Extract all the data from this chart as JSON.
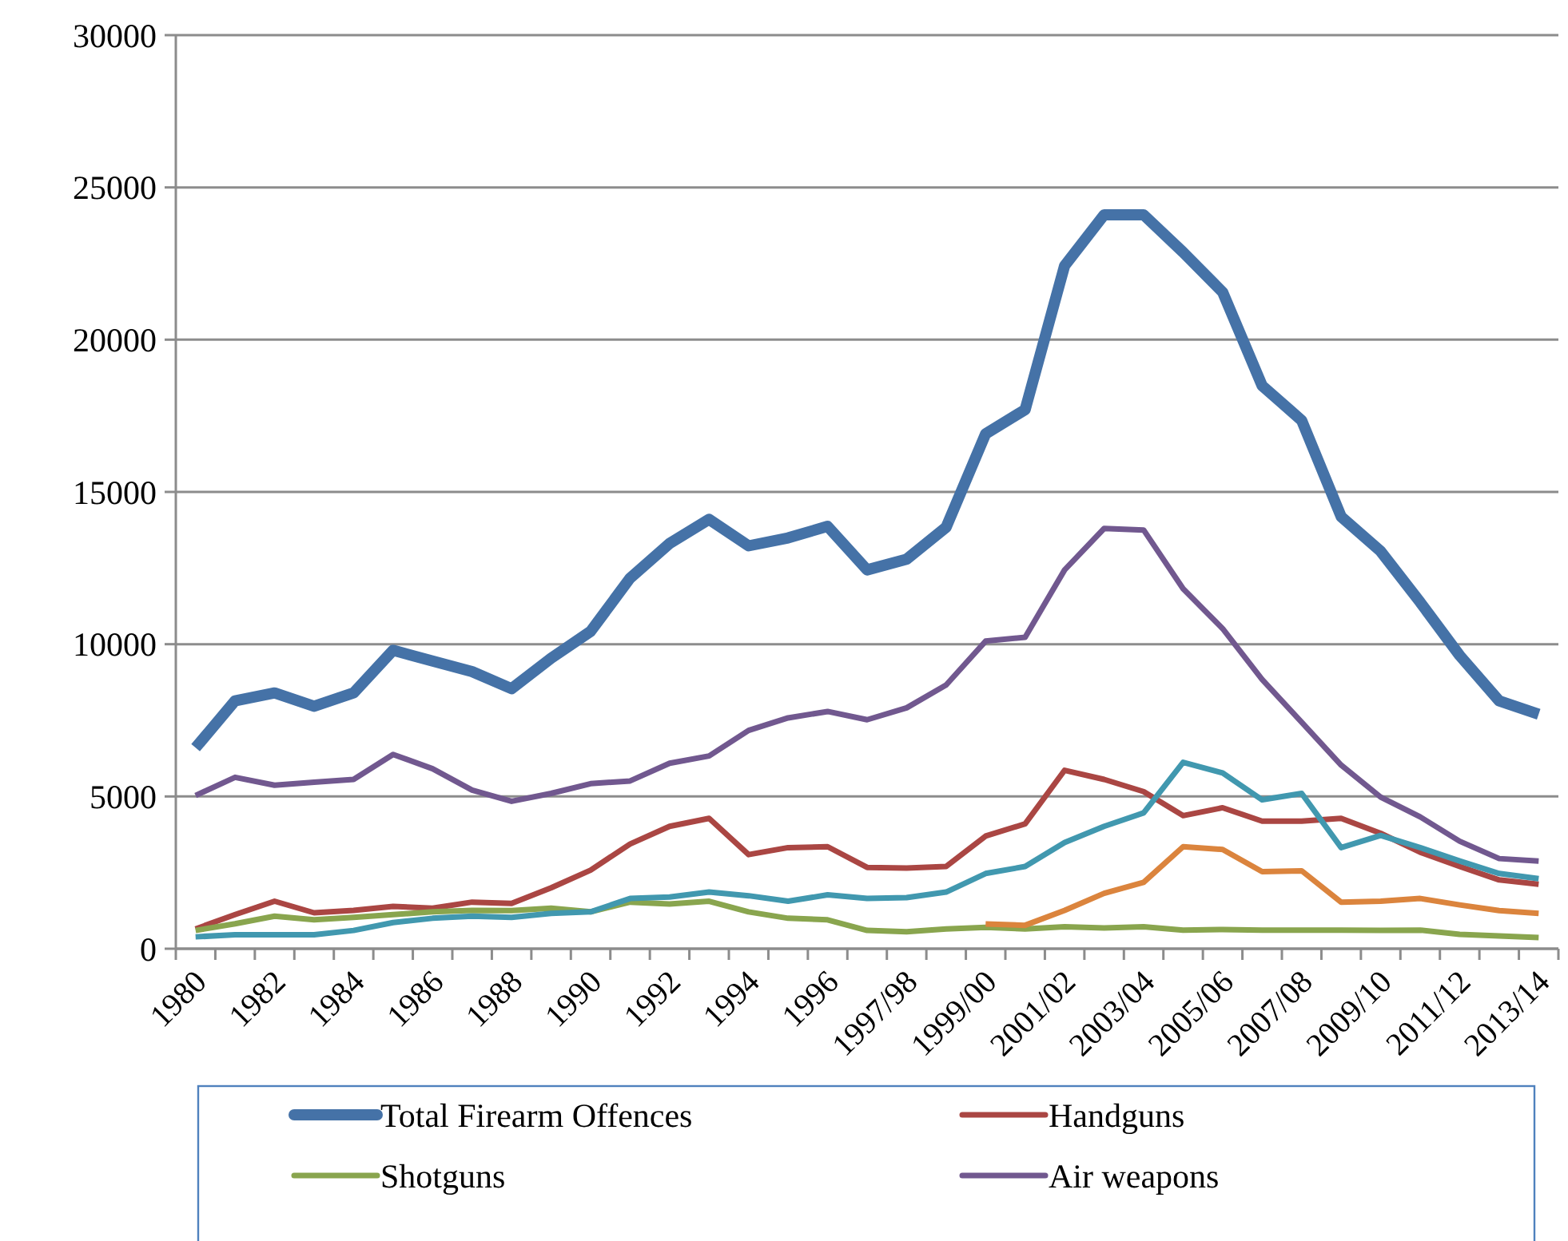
{
  "chart_data": {
    "type": "line",
    "categories": [
      "1980",
      null,
      "1982",
      null,
      "1984",
      null,
      "1986",
      null,
      "1988",
      null,
      "1990",
      null,
      "1992",
      null,
      "1994",
      null,
      "1996",
      null,
      "1997/98",
      null,
      "1999/00",
      null,
      "2001/02",
      null,
      "2003/04",
      null,
      "2005/06",
      null,
      "2007/08",
      null,
      "2009/10",
      null,
      "2011/12",
      null,
      "2013/14"
    ],
    "series": [
      {
        "name": "Total Firearm Offences",
        "color": "#4572a7",
        "values": [
          6600,
          8140,
          8400,
          7960,
          8400,
          9800,
          9450,
          9100,
          8540,
          9540,
          10420,
          12170,
          13310,
          14100,
          13230,
          13490,
          13870,
          12440,
          12790,
          13840,
          16910,
          17700,
          22430,
          24100,
          24100,
          22870,
          21560,
          18490,
          17350,
          14190,
          13050,
          11380,
          9630,
          8140,
          7700
        ]
      },
      {
        "name": "Handguns",
        "color": "#aa4643",
        "values": [
          650,
          1120,
          1560,
          1180,
          1260,
          1390,
          1330,
          1530,
          1490,
          2000,
          2580,
          3440,
          4020,
          4280,
          3090,
          3320,
          3350,
          2670,
          2650,
          2700,
          3700,
          4100,
          5860,
          5560,
          5160,
          4370,
          4630,
          4190,
          4190,
          4280,
          3790,
          3170,
          2700,
          2260,
          2120
        ]
      },
      {
        "name": "Shotguns",
        "color": "#89a54e",
        "values": [
          600,
          820,
          1070,
          950,
          1030,
          1120,
          1210,
          1260,
          1250,
          1330,
          1210,
          1530,
          1470,
          1560,
          1210,
          1000,
          950,
          600,
          560,
          650,
          700,
          650,
          720,
          680,
          720,
          610,
          630,
          610,
          610,
          610,
          600,
          610,
          470,
          420,
          370
        ]
      },
      {
        "name": "Air weapons",
        "color": "#71588f",
        "values": [
          5030,
          5630,
          5370,
          5470,
          5560,
          6380,
          5910,
          5210,
          4840,
          5100,
          5420,
          5510,
          6090,
          6330,
          7170,
          7580,
          7790,
          7520,
          7910,
          8660,
          10100,
          10230,
          12440,
          13800,
          13750,
          11820,
          10510,
          8840,
          7440,
          6030,
          4980,
          4330,
          3530,
          2960,
          2880
        ]
      },
      {
        "color": "#4198af",
        "values": [
          390,
          460,
          460,
          460,
          600,
          860,
          1000,
          1070,
          1030,
          1160,
          1210,
          1650,
          1700,
          1860,
          1740,
          1560,
          1770,
          1650,
          1680,
          1860,
          2470,
          2700,
          3490,
          4020,
          4460,
          6120,
          5770,
          4890,
          5100,
          3320,
          3720,
          3320,
          2880,
          2470,
          2300
        ]
      },
      {
        "color": "#db843d",
        "values": [
          null,
          null,
          null,
          null,
          null,
          null,
          null,
          null,
          null,
          null,
          null,
          null,
          null,
          null,
          null,
          null,
          null,
          null,
          null,
          null,
          810,
          770,
          1260,
          1820,
          2180,
          3350,
          3260,
          2530,
          2560,
          1530,
          1560,
          1650,
          1440,
          1250,
          1160
        ]
      }
    ],
    "ylim": [
      0,
      30000
    ],
    "yticks": [
      0,
      5000,
      10000,
      15000,
      20000,
      25000,
      30000
    ],
    "grid": "y",
    "legend": "bottom",
    "marker": "none",
    "line_style": "solid"
  }
}
